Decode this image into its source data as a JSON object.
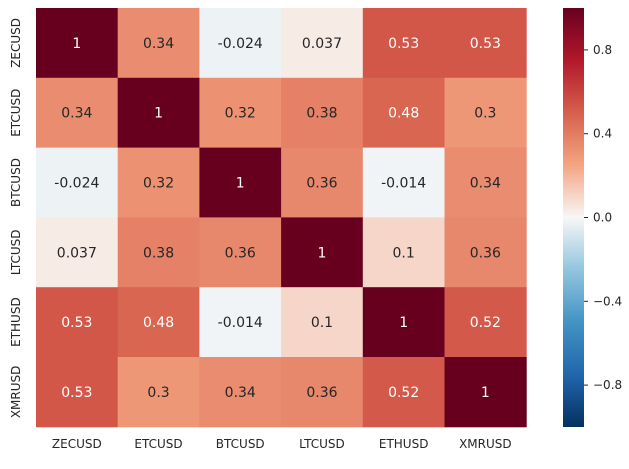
{
  "chart_data": {
    "type": "heatmap",
    "title": "",
    "xlabel": "",
    "ylabel": "",
    "categories_x": [
      "ZECUSD",
      "ETCUSD",
      "BTCUSD",
      "LTCUSD",
      "ETHUSD",
      "XMRUSD"
    ],
    "categories_y": [
      "ZECUSD",
      "ETCUSD",
      "BTCUSD",
      "LTCUSD",
      "ETHUSD",
      "XMRUSD"
    ],
    "values": [
      [
        1,
        0.34,
        -0.024,
        0.037,
        0.53,
        0.53
      ],
      [
        0.34,
        1,
        0.32,
        0.38,
        0.48,
        0.3
      ],
      [
        -0.024,
        0.32,
        1,
        0.36,
        -0.014,
        0.34
      ],
      [
        0.037,
        0.38,
        0.36,
        1,
        0.1,
        0.36
      ],
      [
        0.53,
        0.48,
        -0.014,
        0.1,
        1,
        0.52
      ],
      [
        0.53,
        0.3,
        0.34,
        0.36,
        0.52,
        1
      ]
    ],
    "value_labels": [
      [
        "1",
        "0.34",
        "-0.024",
        "0.037",
        "0.53",
        "0.53"
      ],
      [
        "0.34",
        "1",
        "0.32",
        "0.38",
        "0.48",
        "0.3"
      ],
      [
        "-0.024",
        "0.32",
        "1",
        "0.36",
        "-0.014",
        "0.34"
      ],
      [
        "0.037",
        "0.38",
        "0.36",
        "1",
        "0.1",
        "0.36"
      ],
      [
        "0.53",
        "0.48",
        "-0.014",
        "0.1",
        "1",
        "0.52"
      ],
      [
        "0.53",
        "0.3",
        "0.34",
        "0.36",
        "0.52",
        "1"
      ]
    ],
    "colormap": "RdBu_r",
    "vmin": -1,
    "vmax": 1,
    "colorbar": {
      "ticks": [
        0.8,
        0.4,
        0.0,
        -0.4,
        -0.8
      ],
      "tick_labels": [
        "0.8",
        "0.4",
        "0.0",
        "−0.4",
        "−0.8"
      ]
    },
    "grid": false,
    "colors": {
      "low": "#053061",
      "mid": "#f7f7f7",
      "high": "#67001f",
      "text_dark": "#262626",
      "text_light": "#ffffff"
    }
  }
}
